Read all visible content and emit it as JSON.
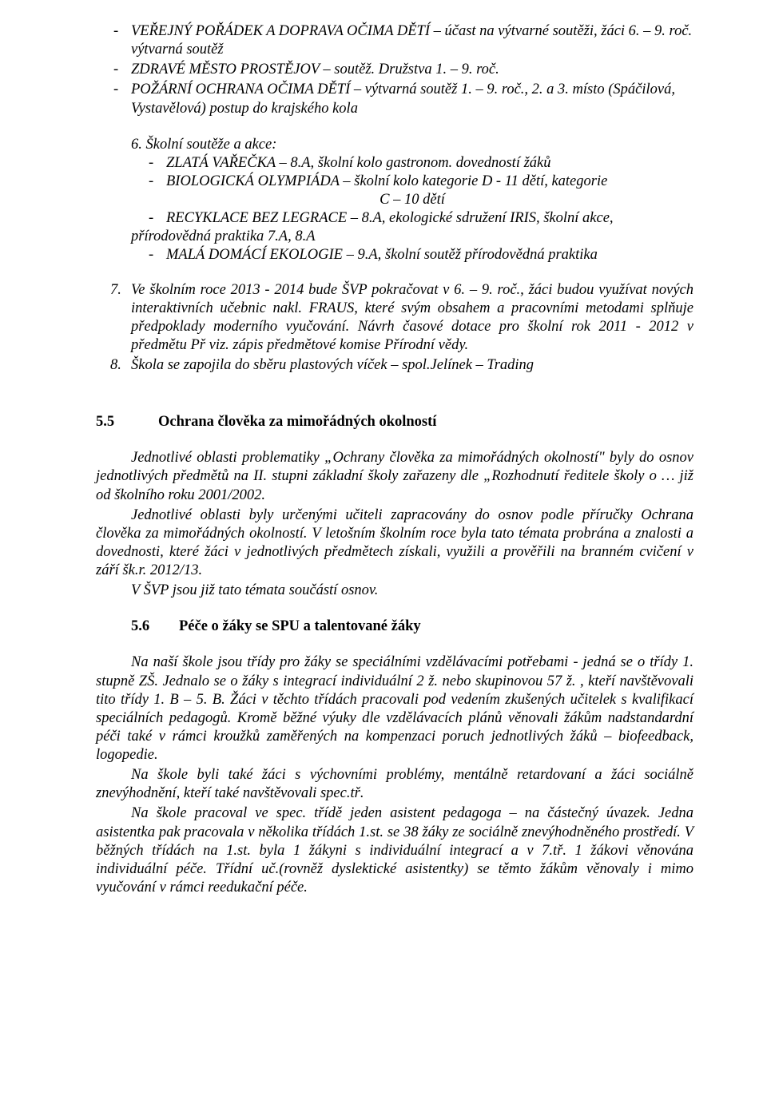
{
  "topList": {
    "i1a": "VEŘEJNÝ POŘÁDEK A DOPRAVA OČIMA DĚTÍ – účast na výtvarné soutěži, žáci 6. – 9. roč. výtvarná soutěž",
    "i2": "ZDRAVÉ MĚSTO PROSTĚJOV – soutěž. Družstva 1. – 9. roč.",
    "i3": "POŽÁRNÍ OCHRANA OČIMA DĚTÍ – výtvarná soutěž 1. – 9. roč., 2. a 3. místo (Spáčilová, Vystavělová) postup do krajského kola"
  },
  "section6": {
    "lead": "6.   Školní soutěže a akce:",
    "i1": "ZLATÁ VAŘEČKA – 8.A, školní kolo gastronom. dovedností žáků",
    "i2": "BIOLOGICKÁ OLYMPIÁDA – školní kolo kategorie D - 11 dětí, kategorie",
    "i2b": "C – 10 dětí",
    "i3": "RECYKLACE BEZ LEGRACE – 8.A, ekologické sdružení IRIS, školní akce, ",
    "i3wrap": "přírodovědná praktika 7.A, 8.A",
    "i4": "MALÁ DOMÁCÍ EKOLOGIE – 9.A, školní soutěž přírodovědná praktika"
  },
  "para7": "Ve školním roce 2013 - 2014 bude ŠVP pokračovat v 6. – 9. roč., žáci budou využívat nových interaktivních učebnic nakl. FRAUS, které svým obsahem a pracovními metodami splňuje předpoklady moderního vyučování. Návrh časové dotace pro školní rok 2011 - 2012 v předmětu Př viz. zápis předmětové komise Přírodní vědy.",
  "para8": "Škola se zapojila do sběru plastových víček – spol.Jelínek – Trading",
  "sec55": {
    "num": "5.5",
    "title": "Ochrana člověka za mimořádných okolností",
    "p1": "Jednotlivé oblasti problematiky „Ochrany člověka za mimořádných okolností\" byly do osnov jednotlivých předmětů na II. stupni základní školy zařazeny dle „Rozhodnutí ředitele školy o …   již od školního roku 2001/2002.",
    "p2": "Jednotlivé oblasti byly určenými učiteli zapracovány do osnov podle příručky Ochrana člověka za mimořádných okolností. V letošním školním roce byla tato témata probrána a znalosti a dovednosti, které žáci v jednotlivých předmětech získali, využili a prověřili na branném cvičení v září šk.r.  2012/13.",
    "p3": "V  ŠVP jsou již tato témata součástí osnov."
  },
  "sec56": {
    "num": "5.6",
    "title": "Péče o žáky se SPU a talentované žáky",
    "p1": "Na naší škole jsou třídy pro žáky se speciálními vzdělávacími potřebami -  jedná se o třídy 1. stupně ZŠ. Jednalo se o žáky s integrací individuální 2 ž. nebo skupinovou  57 ž. , kteří navštěvovali tito třídy 1. B – 5. B.  Žáci v těchto třídách pracovali pod vedením zkušených  učitelek s kvalifikací speciálních pedagogů. Kromě běžné výuky dle vzdělávacích plánů  věnovali žákům nadstandardní péči také v rámci kroužků zaměřených na kompenzaci poruch jednotlivých žáků – biofeedback, logopedie.",
    "p2": "Na škole byli také žáci s výchovními problémy, mentálně retardovaní a žáci sociálně znevýhodnění, kteří také navštěvovali  spec.tř.",
    "p3": "Na škole pracoval ve spec. třídě  jeden asistent pedagoga – na částečný úvazek. Jedna asistentka pak pracovala v několika třídách 1.st.  se 38 žáky ze sociálně znevýhodněného prostředí. V běžných třídách na 1.st. byla 1 žákyni s individuální integrací a v 7.tř. 1 žákovi věnována individuální péče. Třídní uč.(rovněž dyslektické asistentky) se těmto žákům věnovaly i mimo vyučování v rámci reedukační péče."
  }
}
